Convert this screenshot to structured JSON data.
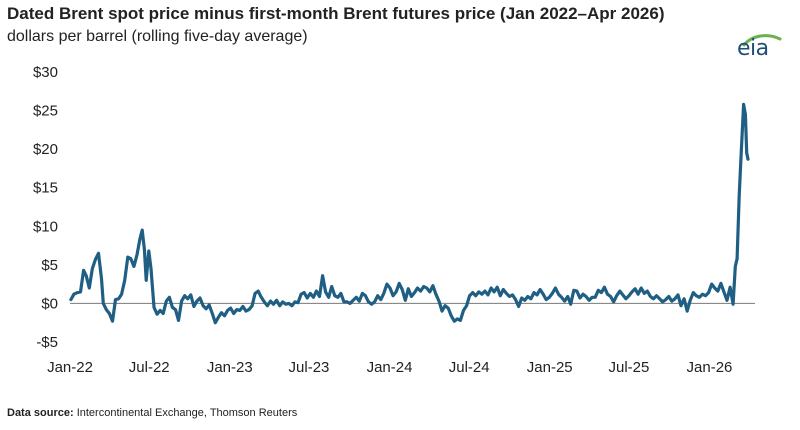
{
  "header": {
    "title": "Dated Brent spot price minus first-month Brent futures price (Jan 2022–Apr 2026)",
    "subtitle": "dollars per barrel (rolling five-day average)",
    "logo_text": "eia"
  },
  "footer": {
    "source_label": "Data source:",
    "source_text": "Intercontinental Exchange, Thomson Reuters"
  },
  "colors": {
    "line": "#1f5f84",
    "zero_line": "#7a7a7a",
    "logo": "#1f4e79",
    "logo_swoosh": "#6ab04c"
  },
  "chart_data": {
    "type": "line",
    "title": "Dated Brent spot price minus first-month Brent futures price (Jan 2022–Apr 2026)",
    "ylabel": "dollars per barrel (rolling five-day average)",
    "ylim": [
      -5,
      30
    ],
    "yticks": [
      30,
      25,
      20,
      15,
      10,
      5,
      0,
      -5
    ],
    "ytick_labels": [
      "$30",
      "$25",
      "$20",
      "$15",
      "$10",
      "$5",
      "$0",
      "-$5"
    ],
    "xlim": [
      "2022-01-01",
      "2026-04-15"
    ],
    "xticks": [
      "2022-01-01",
      "2022-07-01",
      "2023-01-01",
      "2023-07-01",
      "2024-01-01",
      "2024-07-01",
      "2025-01-01",
      "2025-07-01",
      "2026-01-01"
    ],
    "xtick_labels": [
      "Jan-22",
      "Jul-22",
      "Jan-23",
      "Jul-23",
      "Jan-24",
      "Jul-24",
      "Jan-25",
      "Jul-25",
      "Jan-26"
    ],
    "grid": false,
    "legend": false,
    "series": [
      {
        "values": [
          [
            "2022-01-03",
            0.5
          ],
          [
            "2022-01-10",
            1.2
          ],
          [
            "2022-01-18",
            1.4
          ],
          [
            "2022-01-25",
            1.5
          ],
          [
            "2022-02-01",
            4.3
          ],
          [
            "2022-02-07",
            3.6
          ],
          [
            "2022-02-14",
            2.0
          ],
          [
            "2022-02-21",
            4.5
          ],
          [
            "2022-02-28",
            5.7
          ],
          [
            "2022-03-07",
            6.5
          ],
          [
            "2022-03-14",
            3.2
          ],
          [
            "2022-03-18",
            0.0
          ],
          [
            "2022-03-25",
            -0.8
          ],
          [
            "2022-04-01",
            -1.3
          ],
          [
            "2022-04-08",
            -2.3
          ],
          [
            "2022-04-15",
            0.5
          ],
          [
            "2022-04-22",
            0.6
          ],
          [
            "2022-04-29",
            1.2
          ],
          [
            "2022-05-06",
            3.0
          ],
          [
            "2022-05-13",
            6.0
          ],
          [
            "2022-05-20",
            5.8
          ],
          [
            "2022-05-27",
            4.8
          ],
          [
            "2022-06-03",
            6.3
          ],
          [
            "2022-06-10",
            8.4
          ],
          [
            "2022-06-15",
            9.5
          ],
          [
            "2022-06-20",
            7.0
          ],
          [
            "2022-06-24",
            3.0
          ],
          [
            "2022-06-30",
            6.8
          ],
          [
            "2022-07-05",
            4.5
          ],
          [
            "2022-07-12",
            -0.5
          ],
          [
            "2022-07-19",
            -1.4
          ],
          [
            "2022-07-26",
            -0.9
          ],
          [
            "2022-08-02",
            -1.3
          ],
          [
            "2022-08-09",
            0.3
          ],
          [
            "2022-08-16",
            0.8
          ],
          [
            "2022-08-23",
            -0.5
          ],
          [
            "2022-08-30",
            -0.8
          ],
          [
            "2022-09-06",
            -2.2
          ],
          [
            "2022-09-13",
            0.3
          ],
          [
            "2022-09-20",
            1.0
          ],
          [
            "2022-09-27",
            0.6
          ],
          [
            "2022-10-04",
            1.1
          ],
          [
            "2022-10-11",
            -0.4
          ],
          [
            "2022-10-18",
            0.3
          ],
          [
            "2022-10-25",
            0.7
          ],
          [
            "2022-11-01",
            -0.3
          ],
          [
            "2022-11-08",
            -0.7
          ],
          [
            "2022-11-15",
            -0.2
          ],
          [
            "2022-11-22",
            -1.3
          ],
          [
            "2022-11-29",
            -2.5
          ],
          [
            "2022-12-06",
            -1.8
          ],
          [
            "2022-12-13",
            -1.2
          ],
          [
            "2022-12-20",
            -1.6
          ],
          [
            "2022-12-27",
            -0.9
          ],
          [
            "2023-01-03",
            -0.6
          ],
          [
            "2023-01-10",
            -1.3
          ],
          [
            "2023-01-17",
            -0.8
          ],
          [
            "2023-01-24",
            -0.9
          ],
          [
            "2023-01-31",
            -0.4
          ],
          [
            "2023-02-07",
            -1.0
          ],
          [
            "2023-02-14",
            -0.8
          ],
          [
            "2023-02-21",
            -0.3
          ],
          [
            "2023-02-28",
            1.3
          ],
          [
            "2023-03-07",
            1.6
          ],
          [
            "2023-03-14",
            0.8
          ],
          [
            "2023-03-21",
            0.2
          ],
          [
            "2023-03-28",
            -0.3
          ],
          [
            "2023-04-04",
            0.3
          ],
          [
            "2023-04-11",
            -0.1
          ],
          [
            "2023-04-18",
            0.4
          ],
          [
            "2023-04-25",
            -0.3
          ],
          [
            "2023-05-02",
            0.2
          ],
          [
            "2023-05-09",
            -0.1
          ],
          [
            "2023-05-16",
            0.0
          ],
          [
            "2023-05-23",
            -0.3
          ],
          [
            "2023-05-30",
            0.2
          ],
          [
            "2023-06-06",
            0.1
          ],
          [
            "2023-06-13",
            1.2
          ],
          [
            "2023-06-20",
            1.4
          ],
          [
            "2023-06-27",
            0.7
          ],
          [
            "2023-07-04",
            1.3
          ],
          [
            "2023-07-11",
            0.8
          ],
          [
            "2023-07-18",
            1.6
          ],
          [
            "2023-07-25",
            0.9
          ],
          [
            "2023-08-01",
            3.6
          ],
          [
            "2023-08-08",
            1.5
          ],
          [
            "2023-08-15",
            0.8
          ],
          [
            "2023-08-22",
            2.2
          ],
          [
            "2023-08-29",
            1.0
          ],
          [
            "2023-09-05",
            0.8
          ],
          [
            "2023-09-12",
            1.3
          ],
          [
            "2023-09-19",
            0.2
          ],
          [
            "2023-09-26",
            0.2
          ],
          [
            "2023-10-03",
            0.0
          ],
          [
            "2023-10-10",
            0.4
          ],
          [
            "2023-10-17",
            0.8
          ],
          [
            "2023-10-24",
            0.3
          ],
          [
            "2023-10-31",
            1.3
          ],
          [
            "2023-11-07",
            1.0
          ],
          [
            "2023-11-14",
            0.2
          ],
          [
            "2023-11-21",
            -0.1
          ],
          [
            "2023-11-28",
            0.2
          ],
          [
            "2023-12-05",
            1.0
          ],
          [
            "2023-12-12",
            0.5
          ],
          [
            "2023-12-19",
            1.3
          ],
          [
            "2023-12-26",
            2.5
          ],
          [
            "2024-01-02",
            2.0
          ],
          [
            "2024-01-09",
            1.0
          ],
          [
            "2024-01-16",
            1.5
          ],
          [
            "2024-01-23",
            2.6
          ],
          [
            "2024-01-30",
            1.8
          ],
          [
            "2024-02-06",
            0.4
          ],
          [
            "2024-02-13",
            1.9
          ],
          [
            "2024-02-20",
            0.9
          ],
          [
            "2024-02-27",
            1.4
          ],
          [
            "2024-03-05",
            2.0
          ],
          [
            "2024-03-12",
            1.6
          ],
          [
            "2024-03-19",
            2.2
          ],
          [
            "2024-03-26",
            2.0
          ],
          [
            "2024-04-02",
            1.5
          ],
          [
            "2024-04-09",
            2.3
          ],
          [
            "2024-04-16",
            1.2
          ],
          [
            "2024-04-23",
            0.3
          ],
          [
            "2024-04-30",
            -1.0
          ],
          [
            "2024-05-07",
            -0.3
          ],
          [
            "2024-05-14",
            -0.6
          ],
          [
            "2024-05-21",
            -1.6
          ],
          [
            "2024-05-28",
            -2.3
          ],
          [
            "2024-06-04",
            -2.0
          ],
          [
            "2024-06-11",
            -2.2
          ],
          [
            "2024-06-18",
            -0.9
          ],
          [
            "2024-06-25",
            -0.3
          ],
          [
            "2024-07-02",
            1.0
          ],
          [
            "2024-07-09",
            1.4
          ],
          [
            "2024-07-16",
            1.0
          ],
          [
            "2024-07-23",
            1.5
          ],
          [
            "2024-07-30",
            1.2
          ],
          [
            "2024-08-06",
            1.6
          ],
          [
            "2024-08-13",
            1.1
          ],
          [
            "2024-08-20",
            2.0
          ],
          [
            "2024-08-27",
            1.5
          ],
          [
            "2024-09-03",
            2.1
          ],
          [
            "2024-09-10",
            1.0
          ],
          [
            "2024-09-17",
            1.8
          ],
          [
            "2024-09-24",
            1.3
          ],
          [
            "2024-10-01",
            0.9
          ],
          [
            "2024-10-08",
            1.1
          ],
          [
            "2024-10-15",
            0.5
          ],
          [
            "2024-10-22",
            -0.4
          ],
          [
            "2024-10-29",
            0.7
          ],
          [
            "2024-11-05",
            0.4
          ],
          [
            "2024-11-12",
            0.9
          ],
          [
            "2024-11-19",
            0.6
          ],
          [
            "2024-11-26",
            1.4
          ],
          [
            "2024-12-03",
            1.1
          ],
          [
            "2024-12-10",
            1.8
          ],
          [
            "2024-12-17",
            1.2
          ],
          [
            "2024-12-24",
            0.5
          ],
          [
            "2024-12-31",
            0.8
          ],
          [
            "2025-01-07",
            1.3
          ],
          [
            "2025-01-14",
            2.0
          ],
          [
            "2025-01-21",
            1.2
          ],
          [
            "2025-01-28",
            0.8
          ],
          [
            "2025-02-04",
            0.3
          ],
          [
            "2025-02-11",
            0.9
          ],
          [
            "2025-02-18",
            -0.1
          ],
          [
            "2025-02-25",
            1.7
          ],
          [
            "2025-03-04",
            1.6
          ],
          [
            "2025-03-11",
            0.7
          ],
          [
            "2025-03-18",
            1.2
          ],
          [
            "2025-03-25",
            0.9
          ],
          [
            "2025-04-01",
            0.4
          ],
          [
            "2025-04-08",
            0.8
          ],
          [
            "2025-04-15",
            0.8
          ],
          [
            "2025-04-22",
            1.7
          ],
          [
            "2025-04-29",
            1.4
          ],
          [
            "2025-05-06",
            2.1
          ],
          [
            "2025-05-13",
            1.2
          ],
          [
            "2025-05-20",
            0.9
          ],
          [
            "2025-05-27",
            0.2
          ],
          [
            "2025-06-03",
            1.0
          ],
          [
            "2025-06-10",
            1.6
          ],
          [
            "2025-06-17",
            1.1
          ],
          [
            "2025-06-24",
            0.6
          ],
          [
            "2025-07-01",
            1.0
          ],
          [
            "2025-07-08",
            1.5
          ],
          [
            "2025-07-15",
            1.9
          ],
          [
            "2025-07-22",
            1.2
          ],
          [
            "2025-07-29",
            2.0
          ],
          [
            "2025-08-05",
            1.3
          ],
          [
            "2025-08-12",
            1.6
          ],
          [
            "2025-08-19",
            0.9
          ],
          [
            "2025-08-26",
            0.6
          ],
          [
            "2025-09-02",
            1.0
          ],
          [
            "2025-09-09",
            0.6
          ],
          [
            "2025-09-16",
            0.2
          ],
          [
            "2025-09-23",
            0.5
          ],
          [
            "2025-09-30",
            0.9
          ],
          [
            "2025-10-07",
            0.3
          ],
          [
            "2025-10-14",
            0.6
          ],
          [
            "2025-10-21",
            1.1
          ],
          [
            "2025-10-28",
            -0.3
          ],
          [
            "2025-11-04",
            0.6
          ],
          [
            "2025-11-11",
            -1.0
          ],
          [
            "2025-11-18",
            0.4
          ],
          [
            "2025-11-25",
            1.4
          ],
          [
            "2025-12-02",
            1.0
          ],
          [
            "2025-12-09",
            0.8
          ],
          [
            "2025-12-16",
            1.2
          ],
          [
            "2025-12-23",
            1.0
          ],
          [
            "2025-12-30",
            1.4
          ],
          [
            "2026-01-06",
            2.5
          ],
          [
            "2026-01-13",
            2.0
          ],
          [
            "2026-01-20",
            1.6
          ],
          [
            "2026-01-27",
            2.6
          ],
          [
            "2026-02-03",
            1.5
          ],
          [
            "2026-02-10",
            0.4
          ],
          [
            "2026-02-17",
            2.1
          ],
          [
            "2026-02-24",
            -0.1
          ],
          [
            "2026-03-01",
            4.8
          ],
          [
            "2026-03-05",
            5.8
          ],
          [
            "2026-03-10",
            14.0
          ],
          [
            "2026-03-15",
            20.0
          ],
          [
            "2026-03-20",
            25.8
          ],
          [
            "2026-03-24",
            24.5
          ],
          [
            "2026-03-27",
            19.5
          ],
          [
            "2026-03-30",
            18.7
          ]
        ]
      }
    ]
  }
}
